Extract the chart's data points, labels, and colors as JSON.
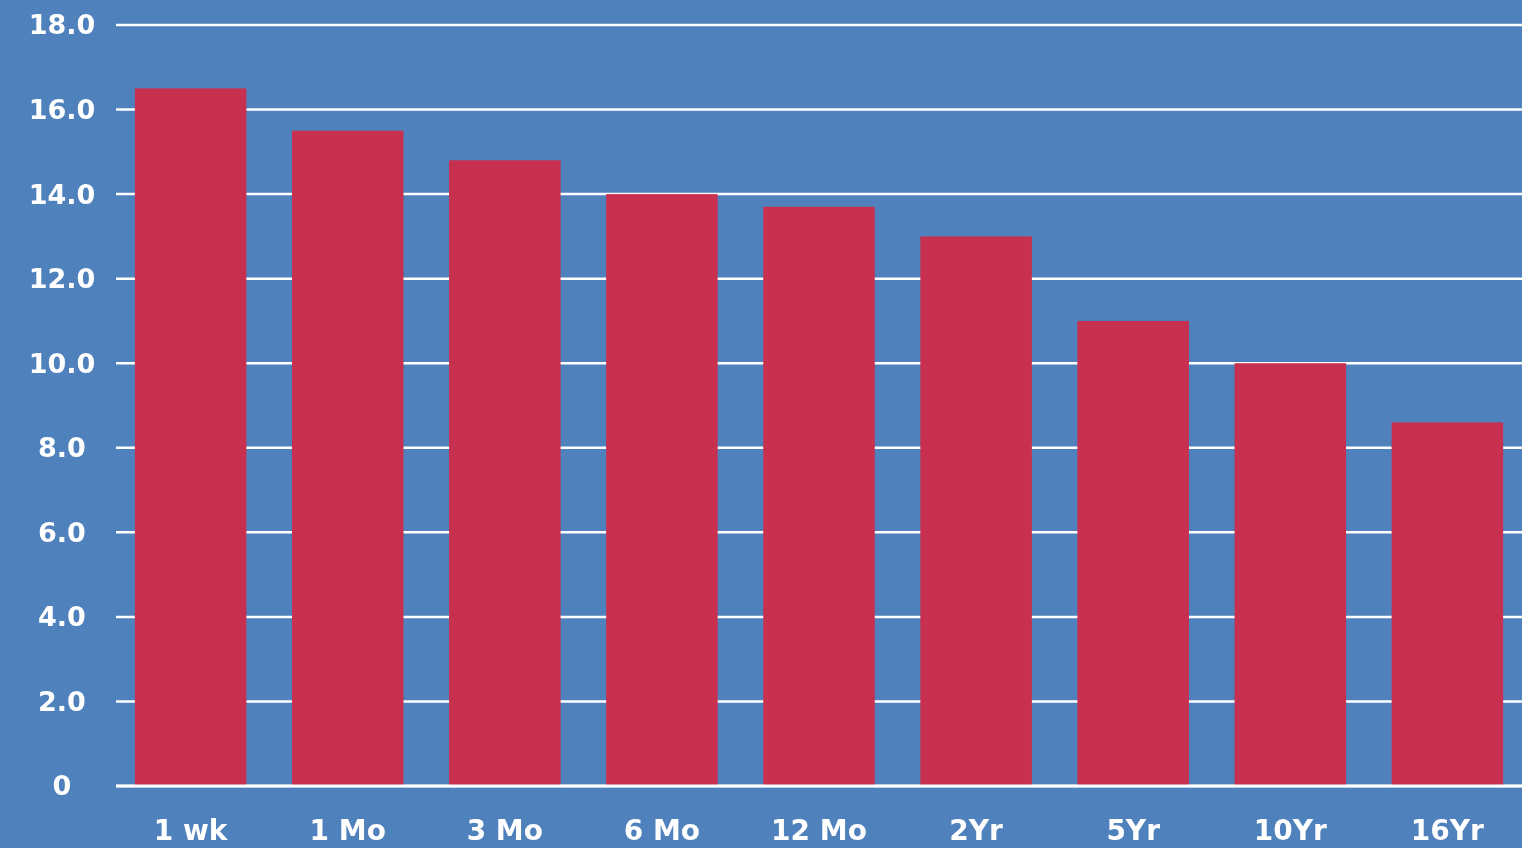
{
  "chart_data": {
    "type": "bar",
    "categories": [
      "1 wk",
      "1 Mo",
      "3 Mo",
      "6 Mo",
      "12 Mo",
      "2Yr",
      "5Yr",
      "10Yr",
      "16Yr"
    ],
    "values": [
      16.5,
      15.5,
      14.8,
      14.0,
      13.7,
      13.0,
      11.0,
      10.0,
      8.6
    ],
    "color": "#c8304f",
    "ylim": [
      0,
      18
    ],
    "yticks": [
      {
        "value": 0,
        "label": "0"
      },
      {
        "value": 2,
        "label": "2.0"
      },
      {
        "value": 4,
        "label": "4.0"
      },
      {
        "value": 6,
        "label": "6.0"
      },
      {
        "value": 8,
        "label": "8.0"
      },
      {
        "value": 10,
        "label": "10.0"
      },
      {
        "value": 12,
        "label": "12.0"
      },
      {
        "value": 14,
        "label": "14.0"
      },
      {
        "value": 16,
        "label": "16.0"
      },
      {
        "value": 18,
        "label": "18.0"
      }
    ],
    "grid": "y"
  }
}
